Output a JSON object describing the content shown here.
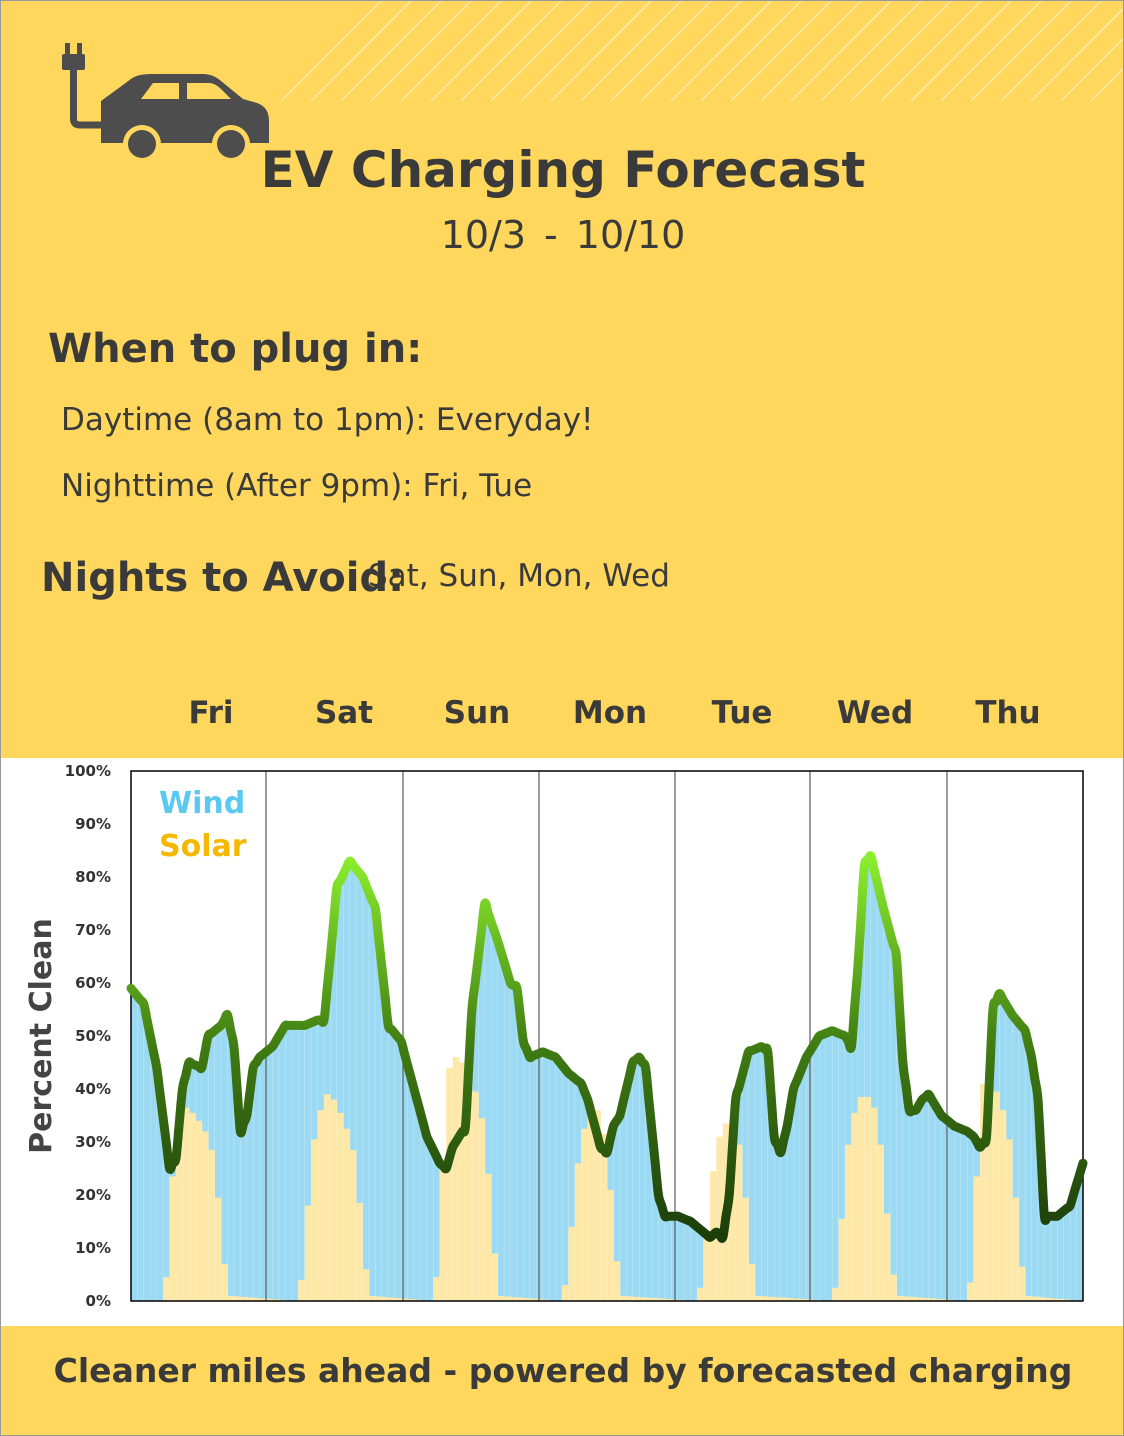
{
  "header": {
    "title": "EV Charging Forecast",
    "date_start": "10/3",
    "date_sep": "-",
    "date_end": "10/10",
    "logo_icon": "ev-car-plug-icon"
  },
  "plug_in": {
    "heading": "When to plug in:",
    "daytime": "Daytime (8am to 1pm): Everyday!",
    "nighttime": "Nighttime  (After 9pm): Fri, Tue"
  },
  "avoid": {
    "heading": "Nights to Avoid:",
    "value": "Sat, Sun, Mon, Wed"
  },
  "footer": "Cleaner miles ahead - powered by forecasted charging",
  "colors": {
    "background": "#fed75c",
    "wind": "#9bdaf2",
    "solar": "#fde8a7",
    "wind_label": "#5bc8f0",
    "solar_label": "#f5b800",
    "line_low": "#1a3a0a",
    "line_high": "#8ef22e"
  },
  "chart_data": {
    "type": "area",
    "title": "",
    "xlabel": "",
    "ylabel": "Percent Clean",
    "ylim": [
      0,
      100
    ],
    "yticks": [
      "0%",
      "10%",
      "20%",
      "30%",
      "40%",
      "50%",
      "60%",
      "70%",
      "80%",
      "90%",
      "100%"
    ],
    "days": [
      "Fri",
      "Sat",
      "Sun",
      "Mon",
      "Tue",
      "Wed",
      "Thu"
    ],
    "legend": [
      "Wind",
      "Solar"
    ],
    "legend_position": "top-left",
    "grid": "vertical day separators",
    "series": [
      {
        "name": "Wind",
        "points": [
          [
            0,
            59
          ],
          [
            2,
            56
          ],
          [
            4,
            44
          ],
          [
            6,
            25
          ],
          [
            7,
            27
          ],
          [
            8,
            40
          ],
          [
            9,
            45
          ],
          [
            11,
            44
          ],
          [
            12,
            50
          ],
          [
            14,
            52
          ],
          [
            15,
            54
          ],
          [
            16,
            48
          ],
          [
            17,
            32
          ],
          [
            18,
            35
          ],
          [
            19,
            44
          ],
          [
            20,
            46
          ],
          [
            22,
            48
          ],
          [
            24,
            52
          ],
          [
            26,
            52
          ],
          [
            27,
            52
          ],
          [
            29,
            53
          ],
          [
            30,
            53
          ],
          [
            31,
            65
          ],
          [
            32,
            78
          ],
          [
            34,
            83
          ],
          [
            36,
            80
          ],
          [
            38,
            74
          ],
          [
            40,
            52
          ],
          [
            42,
            49
          ],
          [
            44,
            40
          ],
          [
            46,
            31
          ],
          [
            48,
            26
          ],
          [
            49,
            25
          ],
          [
            50,
            29
          ],
          [
            52,
            33
          ],
          [
            53,
            55
          ],
          [
            55,
            75
          ],
          [
            57,
            68
          ],
          [
            59,
            60
          ],
          [
            60,
            59
          ],
          [
            61,
            49
          ],
          [
            62,
            46
          ],
          [
            64,
            47
          ],
          [
            66,
            46
          ],
          [
            68,
            43
          ],
          [
            70,
            41
          ],
          [
            71,
            38
          ],
          [
            73,
            29
          ],
          [
            74,
            28
          ],
          [
            75,
            33
          ],
          [
            76,
            35
          ],
          [
            77,
            40
          ],
          [
            78,
            45
          ],
          [
            79,
            46
          ],
          [
            80,
            44
          ],
          [
            81,
            32
          ],
          [
            82,
            20
          ],
          [
            83,
            16
          ],
          [
            85,
            16
          ],
          [
            87,
            15
          ],
          [
            89,
            13
          ],
          [
            90,
            12
          ],
          [
            91,
            13
          ],
          [
            92,
            12
          ],
          [
            93,
            20
          ],
          [
            94,
            38
          ],
          [
            96,
            47
          ],
          [
            98,
            48
          ],
          [
            99,
            47
          ],
          [
            100,
            31
          ],
          [
            101,
            28
          ],
          [
            102,
            33
          ],
          [
            103,
            40
          ],
          [
            105,
            46
          ],
          [
            107,
            50
          ],
          [
            109,
            51
          ],
          [
            111,
            50
          ],
          [
            112,
            48
          ],
          [
            113,
            63
          ],
          [
            114,
            82
          ],
          [
            115,
            84
          ],
          [
            117,
            74
          ],
          [
            119,
            65
          ],
          [
            120,
            45
          ],
          [
            121,
            36
          ],
          [
            122,
            36
          ],
          [
            123,
            38
          ],
          [
            124,
            39
          ],
          [
            126,
            35
          ],
          [
            128,
            33
          ],
          [
            130,
            32
          ],
          [
            131,
            31
          ],
          [
            132,
            29
          ],
          [
            133,
            31
          ],
          [
            134,
            55
          ],
          [
            135,
            58
          ],
          [
            137,
            54
          ],
          [
            139,
            51
          ],
          [
            140,
            46
          ],
          [
            141,
            38
          ],
          [
            142,
            16
          ],
          [
            144,
            16
          ],
          [
            146,
            18
          ],
          [
            147,
            22
          ],
          [
            148,
            26
          ]
        ]
      },
      {
        "name": "Solar",
        "points": [
          [
            5,
            0
          ],
          [
            6,
            9
          ],
          [
            7,
            38
          ],
          [
            8,
            37
          ],
          [
            9,
            36
          ],
          [
            10,
            35
          ],
          [
            11,
            33
          ],
          [
            12,
            31
          ],
          [
            13,
            26
          ],
          [
            14,
            13
          ],
          [
            15,
            1
          ],
          [
            26,
            0
          ],
          [
            27,
            8
          ],
          [
            28,
            28
          ],
          [
            29,
            33
          ],
          [
            30,
            39
          ],
          [
            31,
            39
          ],
          [
            32,
            37
          ],
          [
            33,
            34
          ],
          [
            34,
            31
          ],
          [
            35,
            26
          ],
          [
            36,
            11
          ],
          [
            37,
            1
          ],
          [
            47,
            0
          ],
          [
            48,
            9
          ],
          [
            49,
            42
          ],
          [
            50,
            46
          ],
          [
            51,
            46
          ],
          [
            52,
            44
          ],
          [
            53,
            41
          ],
          [
            54,
            38
          ],
          [
            55,
            31
          ],
          [
            56,
            17
          ],
          [
            57,
            1
          ],
          [
            67,
            0
          ],
          [
            68,
            6
          ],
          [
            69,
            22
          ],
          [
            70,
            30
          ],
          [
            71,
            35
          ],
          [
            72,
            37
          ],
          [
            73,
            35
          ],
          [
            74,
            28
          ],
          [
            75,
            14
          ],
          [
            76,
            1
          ],
          [
            88,
            0
          ],
          [
            89,
            5
          ],
          [
            90,
            20
          ],
          [
            91,
            29
          ],
          [
            92,
            33
          ],
          [
            93,
            34
          ],
          [
            94,
            33
          ],
          [
            95,
            26
          ],
          [
            96,
            13
          ],
          [
            97,
            1
          ],
          [
            109,
            0
          ],
          [
            110,
            5
          ],
          [
            111,
            26
          ],
          [
            112,
            33
          ],
          [
            113,
            38
          ],
          [
            114,
            39
          ],
          [
            115,
            38
          ],
          [
            116,
            35
          ],
          [
            117,
            24
          ],
          [
            118,
            9
          ],
          [
            119,
            1
          ],
          [
            130,
            0
          ],
          [
            131,
            7
          ],
          [
            132,
            40
          ],
          [
            133,
            42
          ],
          [
            134,
            41
          ],
          [
            135,
            38
          ],
          [
            136,
            34
          ],
          [
            137,
            27
          ],
          [
            138,
            12
          ],
          [
            139,
            1
          ],
          [
            148,
            0
          ]
        ]
      },
      {
        "name": "Percent Clean",
        "points": [
          [
            0,
            59
          ],
          [
            2,
            56
          ],
          [
            4,
            44
          ],
          [
            6,
            25
          ],
          [
            7,
            27
          ],
          [
            8,
            40
          ],
          [
            9,
            45
          ],
          [
            11,
            44
          ],
          [
            12,
            50
          ],
          [
            14,
            52
          ],
          [
            15,
            54
          ],
          [
            16,
            48
          ],
          [
            17,
            32
          ],
          [
            18,
            35
          ],
          [
            19,
            44
          ],
          [
            20,
            46
          ],
          [
            22,
            48
          ],
          [
            24,
            52
          ],
          [
            26,
            52
          ],
          [
            27,
            52
          ],
          [
            29,
            53
          ],
          [
            30,
            53
          ],
          [
            31,
            65
          ],
          [
            32,
            78
          ],
          [
            34,
            83
          ],
          [
            36,
            80
          ],
          [
            38,
            74
          ],
          [
            40,
            52
          ],
          [
            42,
            49
          ],
          [
            44,
            40
          ],
          [
            46,
            31
          ],
          [
            48,
            26
          ],
          [
            49,
            25
          ],
          [
            50,
            29
          ],
          [
            52,
            33
          ],
          [
            53,
            55
          ],
          [
            55,
            75
          ],
          [
            57,
            68
          ],
          [
            59,
            60
          ],
          [
            60,
            59
          ],
          [
            61,
            49
          ],
          [
            62,
            46
          ],
          [
            64,
            47
          ],
          [
            66,
            46
          ],
          [
            68,
            43
          ],
          [
            70,
            41
          ],
          [
            71,
            38
          ],
          [
            73,
            29
          ],
          [
            74,
            28
          ],
          [
            75,
            33
          ],
          [
            76,
            35
          ],
          [
            77,
            40
          ],
          [
            78,
            45
          ],
          [
            79,
            46
          ],
          [
            80,
            44
          ],
          [
            81,
            32
          ],
          [
            82,
            20
          ],
          [
            83,
            16
          ],
          [
            85,
            16
          ],
          [
            87,
            15
          ],
          [
            89,
            13
          ],
          [
            90,
            12
          ],
          [
            91,
            13
          ],
          [
            92,
            12
          ],
          [
            93,
            20
          ],
          [
            94,
            38
          ],
          [
            96,
            47
          ],
          [
            98,
            48
          ],
          [
            99,
            47
          ],
          [
            100,
            31
          ],
          [
            101,
            28
          ],
          [
            102,
            33
          ],
          [
            103,
            40
          ],
          [
            105,
            46
          ],
          [
            107,
            50
          ],
          [
            109,
            51
          ],
          [
            111,
            50
          ],
          [
            112,
            48
          ],
          [
            113,
            63
          ],
          [
            114,
            82
          ],
          [
            115,
            84
          ],
          [
            117,
            74
          ],
          [
            119,
            65
          ],
          [
            120,
            45
          ],
          [
            121,
            36
          ],
          [
            122,
            36
          ],
          [
            123,
            38
          ],
          [
            124,
            39
          ],
          [
            126,
            35
          ],
          [
            128,
            33
          ],
          [
            130,
            32
          ],
          [
            131,
            31
          ],
          [
            132,
            29
          ],
          [
            133,
            31
          ],
          [
            134,
            55
          ],
          [
            135,
            58
          ],
          [
            137,
            54
          ],
          [
            139,
            51
          ],
          [
            140,
            46
          ],
          [
            141,
            38
          ],
          [
            142,
            16
          ],
          [
            144,
            16
          ],
          [
            146,
            18
          ],
          [
            147,
            22
          ],
          [
            148,
            26
          ]
        ]
      }
    ]
  }
}
